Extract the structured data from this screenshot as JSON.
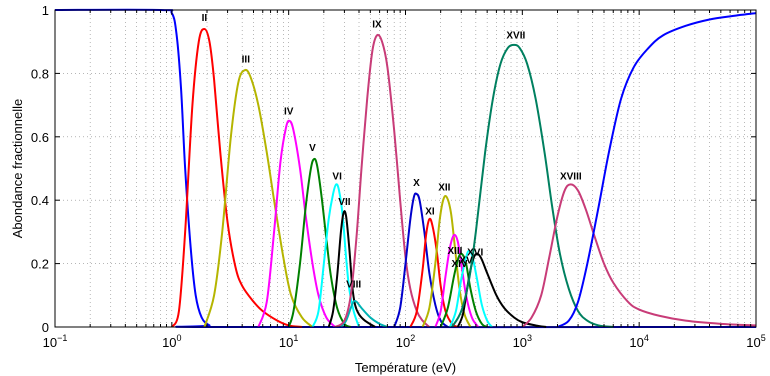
{
  "chart_data": {
    "type": "line",
    "xlabel": "Température (eV)",
    "ylabel": "Abondance fractionnelle",
    "xscale": "log",
    "xlim": [
      0.1,
      100000
    ],
    "ylim": [
      0,
      1
    ],
    "grid": "dotted, major and minor",
    "xticks": [
      {
        "value": 0.1,
        "base": "10",
        "exp": "−1"
      },
      {
        "value": 1,
        "base": "10",
        "exp": "0"
      },
      {
        "value": 10,
        "base": "10",
        "exp": "1"
      },
      {
        "value": 100,
        "base": "10",
        "exp": "2"
      },
      {
        "value": 1000,
        "base": "10",
        "exp": "3"
      },
      {
        "value": 10000,
        "base": "10",
        "exp": "4"
      },
      {
        "value": 100000,
        "base": "10",
        "exp": "5"
      }
    ],
    "yticks": [
      {
        "value": 0,
        "label": "0"
      },
      {
        "value": 0.2,
        "label": "0.2"
      },
      {
        "value": 0.4,
        "label": "0.4"
      },
      {
        "value": 0.6,
        "label": "0.6"
      },
      {
        "value": 0.8,
        "label": "0.8"
      },
      {
        "value": 1,
        "label": "1"
      }
    ],
    "series": [
      {
        "label": "",
        "color": "#0000ff",
        "points": [
          [
            0.1,
            1
          ],
          [
            0.8,
            1
          ],
          [
            1.0,
            0.99
          ],
          [
            1.1,
            0.92
          ],
          [
            1.2,
            0.75
          ],
          [
            1.3,
            0.5
          ],
          [
            1.45,
            0.25
          ],
          [
            1.6,
            0.1
          ],
          [
            1.8,
            0.03
          ],
          [
            2.1,
            0.005
          ],
          [
            2.5,
            0
          ],
          [
            100000,
            0
          ]
        ]
      },
      {
        "label": "II",
        "color": "#ff0000",
        "label_at": [
          1.9,
          0.965
        ],
        "points": [
          [
            1.0,
            0
          ],
          [
            1.15,
            0.05
          ],
          [
            1.3,
            0.3
          ],
          [
            1.5,
            0.7
          ],
          [
            1.7,
            0.9
          ],
          [
            1.9,
            0.94
          ],
          [
            2.1,
            0.9
          ],
          [
            2.3,
            0.78
          ],
          [
            2.6,
            0.55
          ],
          [
            3.0,
            0.33
          ],
          [
            3.5,
            0.19
          ],
          [
            4.0,
            0.13
          ],
          [
            5,
            0.08
          ],
          [
            6,
            0.05
          ],
          [
            8,
            0.02
          ],
          [
            10,
            0.005
          ],
          [
            13,
            0
          ]
        ]
      },
      {
        "label": "III",
        "color": "#b5b500",
        "label_at": [
          4.3,
          0.835
        ],
        "points": [
          [
            1.9,
            0
          ],
          [
            2.3,
            0.1
          ],
          [
            2.7,
            0.3
          ],
          [
            3.2,
            0.6
          ],
          [
            3.7,
            0.77
          ],
          [
            4.2,
            0.81
          ],
          [
            4.7,
            0.79
          ],
          [
            5.5,
            0.7
          ],
          [
            6.5,
            0.55
          ],
          [
            7.5,
            0.4
          ],
          [
            9,
            0.22
          ],
          [
            10.5,
            0.1
          ],
          [
            13,
            0.03
          ],
          [
            16,
            0
          ]
        ]
      },
      {
        "label": "IV",
        "color": "#ff00ff",
        "label_at": [
          10,
          0.67
        ],
        "points": [
          [
            5.5,
            0
          ],
          [
            6.5,
            0.08
          ],
          [
            7.5,
            0.3
          ],
          [
            8.5,
            0.52
          ],
          [
            9.5,
            0.63
          ],
          [
            10.2,
            0.65
          ],
          [
            11,
            0.62
          ],
          [
            12.5,
            0.5
          ],
          [
            14,
            0.35
          ],
          [
            16,
            0.2
          ],
          [
            18,
            0.1
          ],
          [
            21,
            0.03
          ],
          [
            25,
            0
          ]
        ]
      },
      {
        "label": "V",
        "color": "#008000",
        "label_at": [
          16,
          0.555
        ],
        "points": [
          [
            10,
            0
          ],
          [
            11,
            0.05
          ],
          [
            12.5,
            0.2
          ],
          [
            14,
            0.38
          ],
          [
            15.5,
            0.5
          ],
          [
            16.5,
            0.53
          ],
          [
            17.5,
            0.51
          ],
          [
            19,
            0.42
          ],
          [
            21,
            0.28
          ],
          [
            23,
            0.16
          ],
          [
            26,
            0.06
          ],
          [
            30,
            0.01
          ],
          [
            34,
            0
          ]
        ]
      },
      {
        "label": "VI",
        "color": "#00ffff",
        "label_at": [
          26,
          0.465
        ],
        "points": [
          [
            16,
            0
          ],
          [
            18,
            0.05
          ],
          [
            20,
            0.2
          ],
          [
            22,
            0.34
          ],
          [
            24,
            0.42
          ],
          [
            25.5,
            0.45
          ],
          [
            27,
            0.43
          ],
          [
            29,
            0.35
          ],
          [
            31,
            0.22
          ],
          [
            33,
            0.12
          ],
          [
            36,
            0.05
          ],
          [
            40,
            0
          ]
        ]
      },
      {
        "label": "VII",
        "color": "#000000",
        "label_at": [
          30,
          0.385
        ],
        "points": [
          [
            22,
            0
          ],
          [
            24,
            0.05
          ],
          [
            26,
            0.16
          ],
          [
            28,
            0.3
          ],
          [
            29.5,
            0.36
          ],
          [
            31,
            0.35
          ],
          [
            33,
            0.25
          ],
          [
            35,
            0.13
          ],
          [
            37,
            0.07
          ],
          [
            40,
            0.04
          ],
          [
            45,
            0.02
          ],
          [
            55,
            0
          ]
        ]
      },
      {
        "label": "VIII",
        "color": "#00b3b3",
        "label_at": [
          36,
          0.125
        ],
        "points": [
          [
            28,
            0
          ],
          [
            31,
            0.02
          ],
          [
            34,
            0.06
          ],
          [
            36,
            0.08
          ],
          [
            38,
            0.08
          ],
          [
            42,
            0.06
          ],
          [
            50,
            0.03
          ],
          [
            60,
            0.01
          ],
          [
            70,
            0
          ]
        ]
      },
      {
        "label": "IX",
        "color": "#c83c78",
        "label_at": [
          57,
          0.945
        ],
        "points": [
          [
            25,
            0
          ],
          [
            30,
            0.02
          ],
          [
            34,
            0.1
          ],
          [
            38,
            0.28
          ],
          [
            42,
            0.5
          ],
          [
            47,
            0.72
          ],
          [
            52,
            0.87
          ],
          [
            57,
            0.92
          ],
          [
            63,
            0.9
          ],
          [
            70,
            0.82
          ],
          [
            80,
            0.62
          ],
          [
            90,
            0.4
          ],
          [
            100,
            0.22
          ],
          [
            110,
            0.12
          ],
          [
            125,
            0.05
          ],
          [
            140,
            0.02
          ],
          [
            160,
            0
          ]
        ]
      },
      {
        "label": "X",
        "color": "#0000cc",
        "label_at": [
          124,
          0.445
        ],
        "points": [
          [
            80,
            0
          ],
          [
            90,
            0.06
          ],
          [
            100,
            0.2
          ],
          [
            110,
            0.34
          ],
          [
            118,
            0.41
          ],
          [
            124,
            0.42
          ],
          [
            132,
            0.4
          ],
          [
            145,
            0.3
          ],
          [
            160,
            0.17
          ],
          [
            180,
            0.07
          ],
          [
            200,
            0.02
          ],
          [
            230,
            0
          ]
        ]
      },
      {
        "label": "XI",
        "color": "#ff0000",
        "label_at": [
          162,
          0.355
        ],
        "points": [
          [
            110,
            0
          ],
          [
            125,
            0.05
          ],
          [
            140,
            0.18
          ],
          [
            150,
            0.29
          ],
          [
            160,
            0.34
          ],
          [
            170,
            0.32
          ],
          [
            185,
            0.24
          ],
          [
            200,
            0.13
          ],
          [
            220,
            0.05
          ],
          [
            250,
            0.01
          ],
          [
            280,
            0
          ]
        ]
      },
      {
        "label": "XII",
        "color": "#b5b500",
        "label_at": [
          215,
          0.43
        ],
        "points": [
          [
            140,
            0
          ],
          [
            160,
            0.06
          ],
          [
            180,
            0.2
          ],
          [
            195,
            0.33
          ],
          [
            210,
            0.4
          ],
          [
            225,
            0.41
          ],
          [
            245,
            0.36
          ],
          [
            265,
            0.25
          ],
          [
            290,
            0.12
          ],
          [
            320,
            0.04
          ],
          [
            360,
            0
          ]
        ]
      },
      {
        "label": "XIII",
        "color": "#ff00ff",
        "label_at": [
          265,
          0.23
        ],
        "points": [
          [
            180,
            0
          ],
          [
            200,
            0.05
          ],
          [
            220,
            0.16
          ],
          [
            240,
            0.25
          ],
          [
            260,
            0.29
          ],
          [
            280,
            0.27
          ],
          [
            300,
            0.2
          ],
          [
            330,
            0.1
          ],
          [
            370,
            0.03
          ],
          [
            420,
            0
          ]
        ]
      },
      {
        "label": "XIV",
        "color": "#008000",
        "label_at": [
          290,
          0.19
        ],
        "points": [
          [
            200,
            0
          ],
          [
            230,
            0.06
          ],
          [
            260,
            0.16
          ],
          [
            285,
            0.22
          ],
          [
            305,
            0.23
          ],
          [
            330,
            0.2
          ],
          [
            360,
            0.12
          ],
          [
            400,
            0.05
          ],
          [
            450,
            0.01
          ],
          [
            500,
            0
          ]
        ]
      },
      {
        "label": "XV",
        "color": "#00ffff",
        "label_at": [
          330,
          0.2
        ],
        "points": [
          [
            240,
            0
          ],
          [
            270,
            0.05
          ],
          [
            300,
            0.15
          ],
          [
            330,
            0.22
          ],
          [
            350,
            0.24
          ],
          [
            375,
            0.22
          ],
          [
            410,
            0.15
          ],
          [
            450,
            0.07
          ],
          [
            500,
            0.02
          ],
          [
            550,
            0
          ]
        ]
      },
      {
        "label": "XVI",
        "color": "#000000",
        "label_at": [
          395,
          0.225
        ],
        "points": [
          [
            280,
            0
          ],
          [
            310,
            0.04
          ],
          [
            340,
            0.13
          ],
          [
            370,
            0.2
          ],
          [
            400,
            0.23
          ],
          [
            440,
            0.22
          ],
          [
            500,
            0.17
          ],
          [
            600,
            0.1
          ],
          [
            700,
            0.06
          ],
          [
            850,
            0.03
          ],
          [
            1000,
            0.015
          ],
          [
            1300,
            0.005
          ],
          [
            1600,
            0
          ]
        ]
      },
      {
        "label": "XVII",
        "color": "#008060",
        "label_at": [
          880,
          0.91
        ],
        "points": [
          [
            250,
            0
          ],
          [
            300,
            0.05
          ],
          [
            350,
            0.15
          ],
          [
            400,
            0.3
          ],
          [
            480,
            0.55
          ],
          [
            560,
            0.72
          ],
          [
            650,
            0.83
          ],
          [
            750,
            0.88
          ],
          [
            850,
            0.89
          ],
          [
            950,
            0.88
          ],
          [
            1100,
            0.83
          ],
          [
            1300,
            0.72
          ],
          [
            1550,
            0.55
          ],
          [
            1800,
            0.38
          ],
          [
            2100,
            0.23
          ],
          [
            2500,
            0.12
          ],
          [
            3000,
            0.05
          ],
          [
            3600,
            0.02
          ],
          [
            4500,
            0.005
          ],
          [
            6000,
            0
          ]
        ]
      },
      {
        "label": "XVIII",
        "color": "#c83c78",
        "label_at": [
          2600,
          0.465
        ],
        "points": [
          [
            1000,
            0
          ],
          [
            1200,
            0.03
          ],
          [
            1450,
            0.1
          ],
          [
            1700,
            0.22
          ],
          [
            2000,
            0.35
          ],
          [
            2300,
            0.43
          ],
          [
            2600,
            0.45
          ],
          [
            3000,
            0.43
          ],
          [
            3500,
            0.37
          ],
          [
            4200,
            0.28
          ],
          [
            5000,
            0.2
          ],
          [
            6000,
            0.14
          ],
          [
            8000,
            0.08
          ],
          [
            10000,
            0.055
          ],
          [
            15000,
            0.035
          ],
          [
            25000,
            0.02
          ],
          [
            50000,
            0.01
          ],
          [
            100000,
            0.005
          ]
        ]
      },
      {
        "label": "",
        "color": "#0000ff",
        "points": [
          [
            2000,
            0
          ],
          [
            2500,
            0.02
          ],
          [
            3000,
            0.08
          ],
          [
            3600,
            0.2
          ],
          [
            4500,
            0.38
          ],
          [
            5500,
            0.55
          ],
          [
            7000,
            0.72
          ],
          [
            9000,
            0.82
          ],
          [
            12000,
            0.88
          ],
          [
            16000,
            0.92
          ],
          [
            25000,
            0.95
          ],
          [
            40000,
            0.97
          ],
          [
            60000,
            0.98
          ],
          [
            100000,
            0.99
          ]
        ]
      }
    ]
  }
}
